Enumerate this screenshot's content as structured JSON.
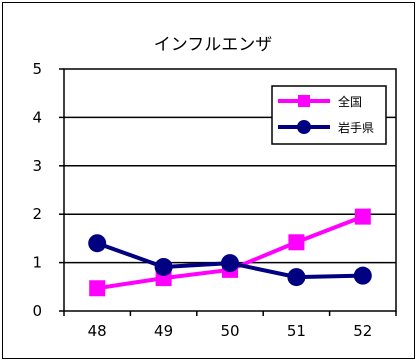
{
  "chart_data": {
    "type": "line",
    "title": "インフルエンザ",
    "categories": [
      "48",
      "49",
      "50",
      "51",
      "52"
    ],
    "ylim": [
      0,
      5
    ],
    "yticks": [
      "0",
      "1",
      "2",
      "3",
      "4",
      "5"
    ],
    "grid": true,
    "legend_position": "top-right",
    "series": [
      {
        "name": "全国",
        "values": [
          0.47,
          0.68,
          0.85,
          1.42,
          1.95
        ],
        "color": "#ff00ff",
        "marker": "square"
      },
      {
        "name": "岩手県",
        "values": [
          1.4,
          0.91,
          0.99,
          0.7,
          0.73
        ],
        "color": "#000080",
        "marker": "circle"
      }
    ]
  }
}
